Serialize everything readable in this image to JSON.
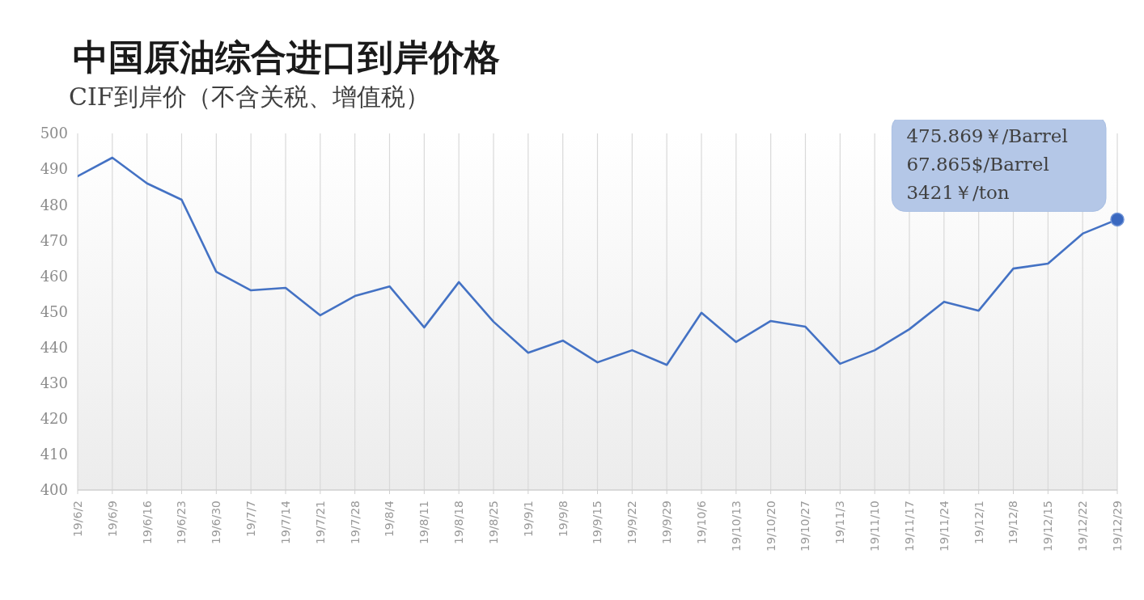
{
  "chart_data": {
    "type": "line",
    "title": "中国原油综合进口到岸价格",
    "subtitle": "CIF到岸价（不含关税、增值税）",
    "categories": [
      "19/6/2",
      "19/6/9",
      "19/6/16",
      "19/6/23",
      "19/6/30",
      "19/7/7",
      "19/7/14",
      "19/7/21",
      "19/7/28",
      "19/8/4",
      "19/8/11",
      "19/8/18",
      "19/8/25",
      "19/9/1",
      "19/9/8",
      "19/9/15",
      "19/9/22",
      "19/9/29",
      "19/10/6",
      "19/10/13",
      "19/10/20",
      "19/10/27",
      "19/11/3",
      "19/11/10",
      "19/11/17",
      "19/11/24",
      "19/12/1",
      "19/12/8",
      "19/12/15",
      "19/12/22",
      "19/12/29"
    ],
    "values": [
      488.0,
      493.2,
      486.0,
      481.4,
      461.2,
      456.0,
      456.7,
      449.0,
      454.4,
      457.1,
      445.6,
      458.3,
      447.2,
      438.5,
      441.9,
      435.8,
      439.2,
      435.1,
      449.7,
      441.5,
      447.4,
      445.8,
      435.4,
      439.2,
      445.1,
      452.8,
      450.3,
      462.1,
      463.5,
      471.9,
      475.869
    ],
    "color": "#4472c4",
    "ylim": [
      400,
      500
    ],
    "yticks": [
      400,
      410,
      420,
      430,
      440,
      450,
      460,
      470,
      480,
      490,
      500
    ],
    "grid": "x",
    "annotations": [
      {
        "text": "475.869￥/Barrel\n67.865$/Barrel\n3421￥/ton",
        "x": "19/12/29",
        "y": 475.869
      }
    ]
  }
}
